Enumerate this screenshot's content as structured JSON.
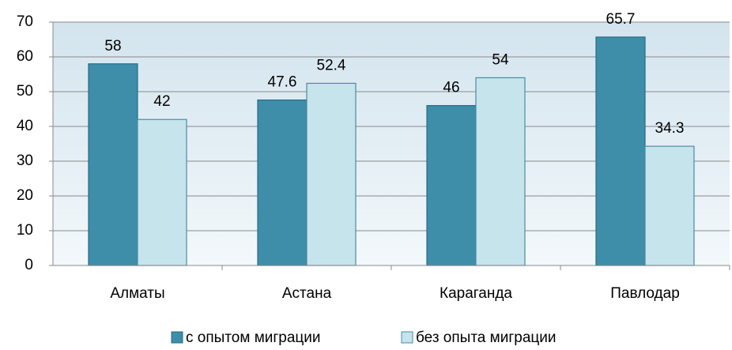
{
  "chart_data": {
    "type": "bar",
    "categories": [
      "Алматы",
      "Астана",
      "Караганда",
      "Павлодар"
    ],
    "series": [
      {
        "name": "с опытом миграции",
        "color": "#3e8eaa",
        "values": [
          58,
          47.6,
          46,
          65.7
        ]
      },
      {
        "name": "без опыта миграции",
        "color": "#c6e4eb",
        "values": [
          42,
          52.4,
          54,
          34.3
        ]
      }
    ],
    "ylim": [
      0,
      70
    ],
    "yticks": [
      0,
      10,
      20,
      30,
      40,
      50,
      60,
      70
    ],
    "grid": true,
    "legend": "bottom"
  }
}
